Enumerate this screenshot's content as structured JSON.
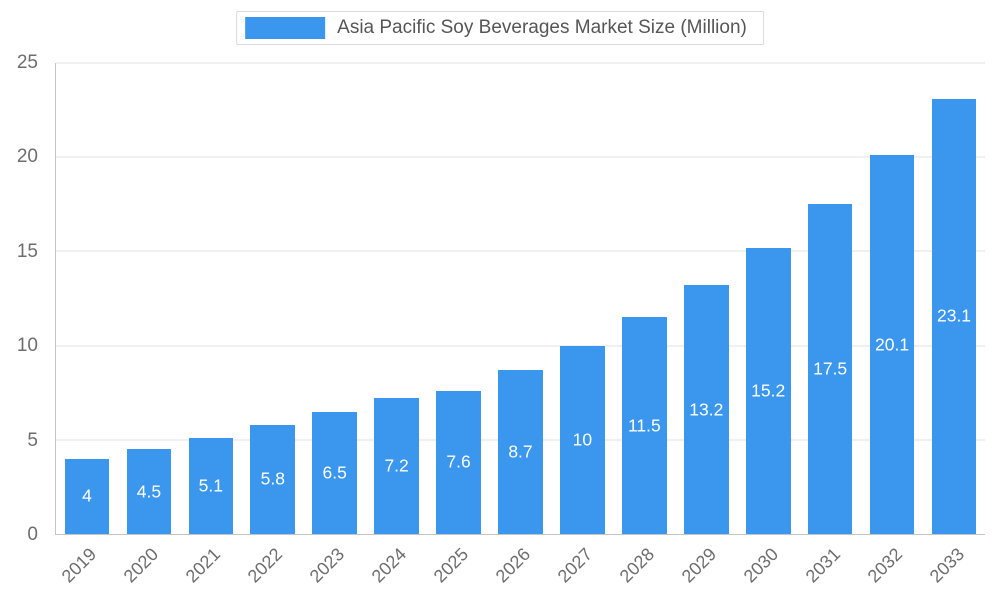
{
  "chart_data": {
    "type": "bar",
    "title": "Asia Pacific Soy Beverages Market Size (Million)",
    "categories": [
      "2019",
      "2020",
      "2021",
      "2022",
      "2023",
      "2024",
      "2025",
      "2026",
      "2027",
      "2028",
      "2029",
      "2030",
      "2031",
      "2032",
      "2033"
    ],
    "values": [
      4,
      4.5,
      5.1,
      5.8,
      6.5,
      7.2,
      7.6,
      8.7,
      10,
      11.5,
      13.2,
      15.2,
      17.5,
      20.1,
      23.1
    ],
    "xlabel": "",
    "ylabel": "",
    "ylim": [
      0,
      25
    ],
    "yticks": [
      0,
      5,
      10,
      15,
      20,
      25
    ],
    "grid": true,
    "legend_position": "top",
    "bar_color": "#3b97ee",
    "bar_label_color": "#ffffff",
    "axis_text_color": "#6e6e6e",
    "grid_color": "#e2e2e2"
  }
}
